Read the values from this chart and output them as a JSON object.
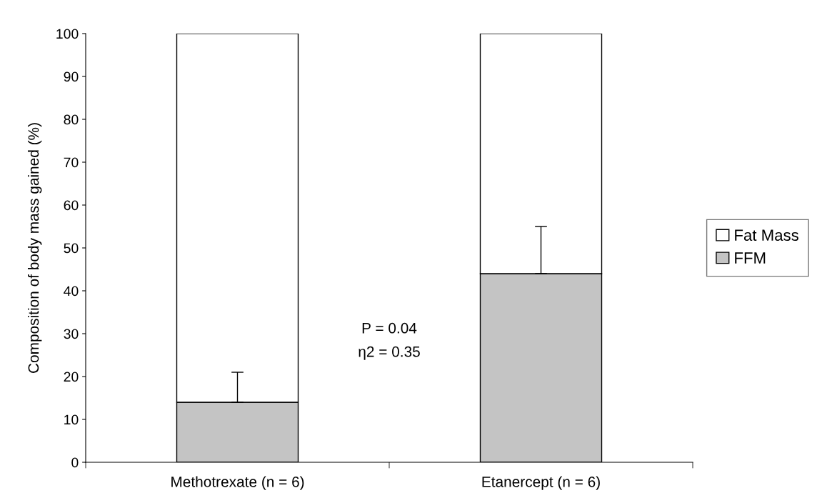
{
  "chart_data": {
    "type": "bar",
    "stacked": true,
    "ylabel": "Composition of body mass gained (%)",
    "categories": [
      "Methotrexate (n = 6)",
      "Etanercept (n = 6)"
    ],
    "series": [
      {
        "name": "FFM",
        "color": "#c4c4c4",
        "values": [
          14,
          44
        ],
        "errors": [
          [
            14,
            21
          ],
          [
            44,
            55
          ]
        ]
      },
      {
        "name": "Fat Mass",
        "color": "#ffffff",
        "values": [
          86,
          56
        ]
      }
    ],
    "ylim": [
      0,
      100
    ],
    "yticks": [
      0,
      10,
      20,
      30,
      40,
      50,
      60,
      70,
      80,
      90,
      100
    ],
    "annotations": [
      "P = 0.04",
      "η2 = 0.35"
    ],
    "legend": "right",
    "grid": false
  }
}
